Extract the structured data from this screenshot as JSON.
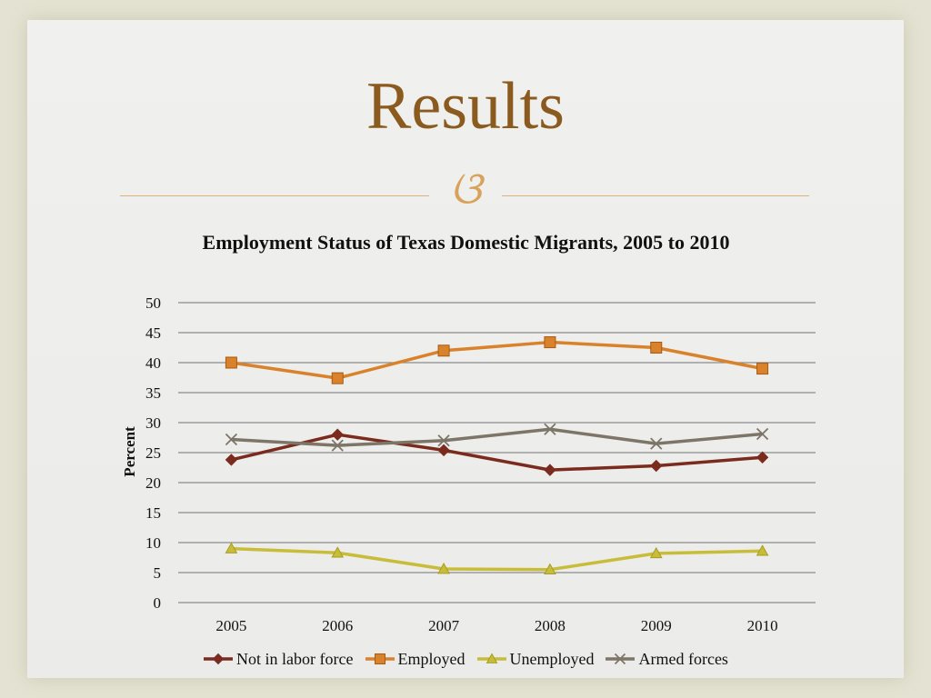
{
  "slide": {
    "title": "Results",
    "ornament": "ଓ"
  },
  "chart_data": {
    "type": "line",
    "title": "Employment Status of Texas Domestic Migrants, 2005 to 2010",
    "xlabel": "",
    "ylabel": "Percent",
    "ylim": [
      0,
      50
    ],
    "ytick_step": 5,
    "grid": true,
    "legend_position": "bottom",
    "categories": [
      "2005",
      "2006",
      "2007",
      "2008",
      "2009",
      "2010"
    ],
    "series": [
      {
        "name": "Not in labor force",
        "values": [
          23.8,
          28.0,
          25.4,
          22.1,
          22.8,
          24.2
        ],
        "color": "#7b2b1e",
        "marker": "diamond"
      },
      {
        "name": "Employed",
        "values": [
          40.0,
          37.4,
          42.0,
          43.4,
          42.5,
          39.0
        ],
        "color": "#d9822b",
        "marker": "square"
      },
      {
        "name": "Unemployed",
        "values": [
          9.0,
          8.3,
          5.6,
          5.5,
          8.2,
          8.6
        ],
        "color": "#c8bd3a",
        "marker": "triangle"
      },
      {
        "name": "Armed forces",
        "values": [
          27.2,
          26.2,
          27.0,
          28.9,
          26.5,
          28.1
        ],
        "color": "#7d7668",
        "marker": "x"
      }
    ]
  }
}
